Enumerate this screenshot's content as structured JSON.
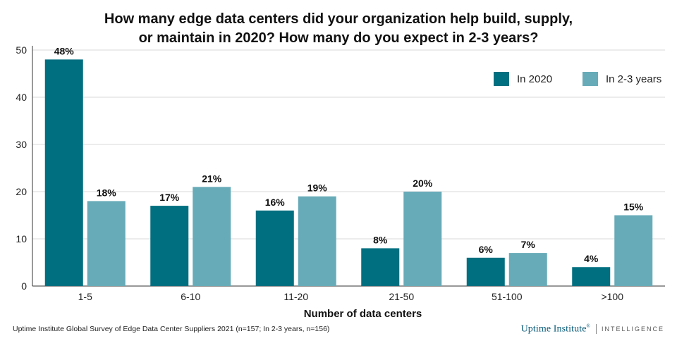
{
  "title_lines": [
    "How many edge data centers did your organization help build, supply,",
    "or maintain in 2020? How many do you expect in 2-3 years?"
  ],
  "source": "Uptime Institute Global Survey of Edge Data Center Suppliers 2021 (n=157; In 2-3 years, n=156)",
  "brand": {
    "main": "Uptime Institute",
    "mark": "®",
    "sub": "INTELLIGENCE"
  },
  "chart_data": {
    "type": "bar",
    "title": "How many edge data centers did your organization help build, supply, or maintain in 2020? How many do you expect in 2-3 years?",
    "xlabel": "Number of data centers",
    "ylabel": "",
    "categories": [
      "1-5",
      "6-10",
      "11-20",
      "21-50",
      "51-100",
      ">100"
    ],
    "series": [
      {
        "name": "In 2020",
        "color": "#006f80",
        "values": [
          48,
          17,
          16,
          8,
          6,
          4
        ],
        "labels": [
          "48%",
          "17%",
          "16%",
          "8%",
          "6%",
          "4%"
        ]
      },
      {
        "name": "In 2-3 years",
        "color": "#67abb8",
        "values": [
          18,
          21,
          19,
          20,
          7,
          15
        ],
        "labels": [
          "18%",
          "21%",
          "19%",
          "20%",
          "7%",
          "15%"
        ]
      }
    ],
    "ylim": [
      0,
      50
    ],
    "yticks": [
      0,
      10,
      20,
      30,
      40,
      50
    ],
    "grid": true,
    "legend": "top-right"
  }
}
